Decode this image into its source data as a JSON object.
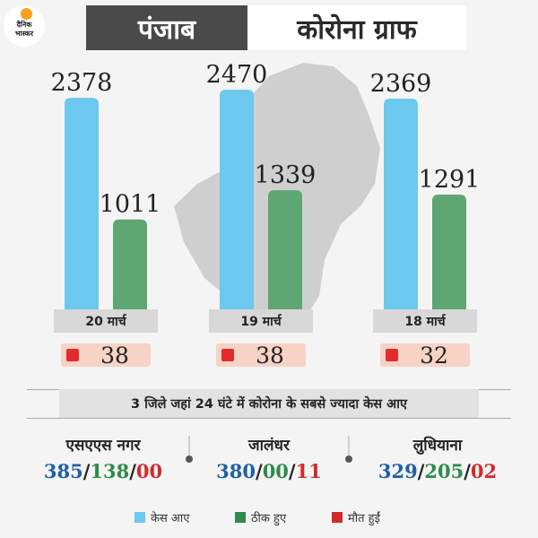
{
  "header": {
    "logo_line1": "दैनिक",
    "logo_line2": "भास्कर",
    "state": "पंजाब",
    "title": "कोरोना ग्राफ"
  },
  "colors": {
    "cases": "#6dc8f0",
    "recovered": "#5fa772",
    "deaths": "#e32b2b",
    "background": "#f4f4f4"
  },
  "chart_data": {
    "type": "bar",
    "categories": [
      "20 मार्च",
      "19 मार्च",
      "18 मार्च"
    ],
    "series": [
      {
        "name": "केस आए",
        "values": [
          2378,
          2470,
          2369
        ]
      },
      {
        "name": "ठीक हुए",
        "values": [
          1011,
          1339,
          1291
        ]
      }
    ],
    "deaths": [
      38,
      38,
      32
    ],
    "xlabel": "",
    "ylabel": "",
    "grid": false,
    "legend": "bottom"
  },
  "headline": "3 जिले जहां 24 घंटे में कोरोना के सबसे ज्यादा केस आए",
  "districts": [
    {
      "name": "एसएएस नगर",
      "cases": "385",
      "recovered": "138",
      "deaths": "00"
    },
    {
      "name": "जालंधर",
      "cases": "380",
      "recovered": "00",
      "deaths": "11"
    },
    {
      "name": "लुधियाना",
      "cases": "329",
      "recovered": "205",
      "deaths": "02"
    }
  ],
  "legend": {
    "cases": "केस आए",
    "recovered": "ठीक हुए",
    "deaths": "मौत हुईं"
  }
}
